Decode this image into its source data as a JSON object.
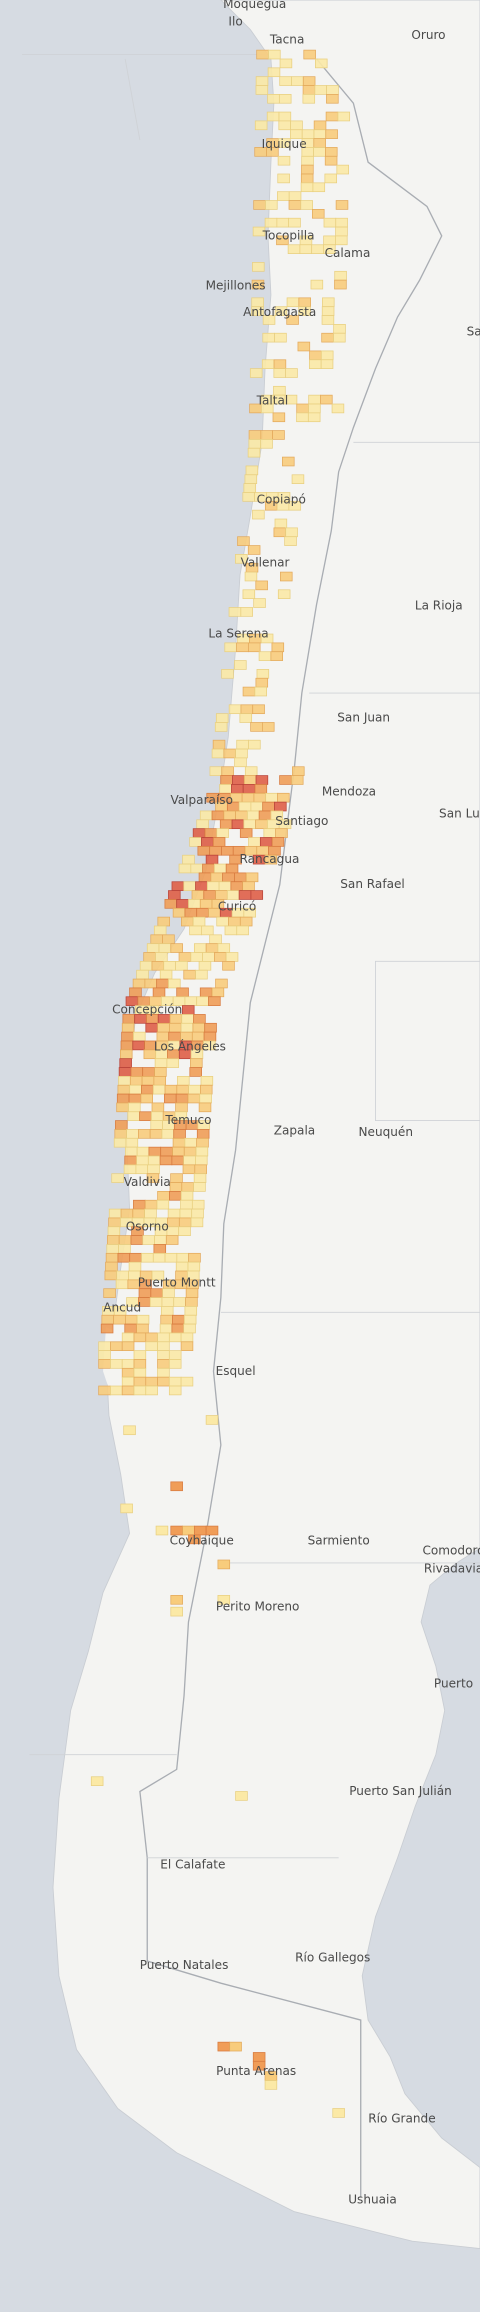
{
  "map": {
    "labels": [
      "Moquegua",
      "Ilo",
      "Tacna",
      "Oruro",
      "Iquique",
      "Tocopilla",
      "Calama",
      "Mejillones",
      "Antofagasta",
      "Sa",
      "Taltal",
      "Copiapó",
      "Vallenar",
      "La Rioja",
      "La Serena",
      "San Juan",
      "Mendoza",
      "Valparaíso",
      "Santiago",
      "San Lu",
      "Rancagua",
      "San Rafael",
      "Curicó",
      "Concepción",
      "Los Ángeles",
      "Temuco",
      "Zapala",
      "Neuquén",
      "Valdivia",
      "Osorno",
      "Puerto Montt",
      "Ancud",
      "Esquel",
      "Coyhaique",
      "Sarmiento",
      "Comodoro",
      "Rivadavia",
      "Perito Moreno",
      "Puerto",
      "Puerto San Julián",
      "El Calafate",
      "Río Gallegos",
      "Puerto Natales",
      "Punta Arenas",
      "Río Grande",
      "Ushuaia"
    ]
  }
}
